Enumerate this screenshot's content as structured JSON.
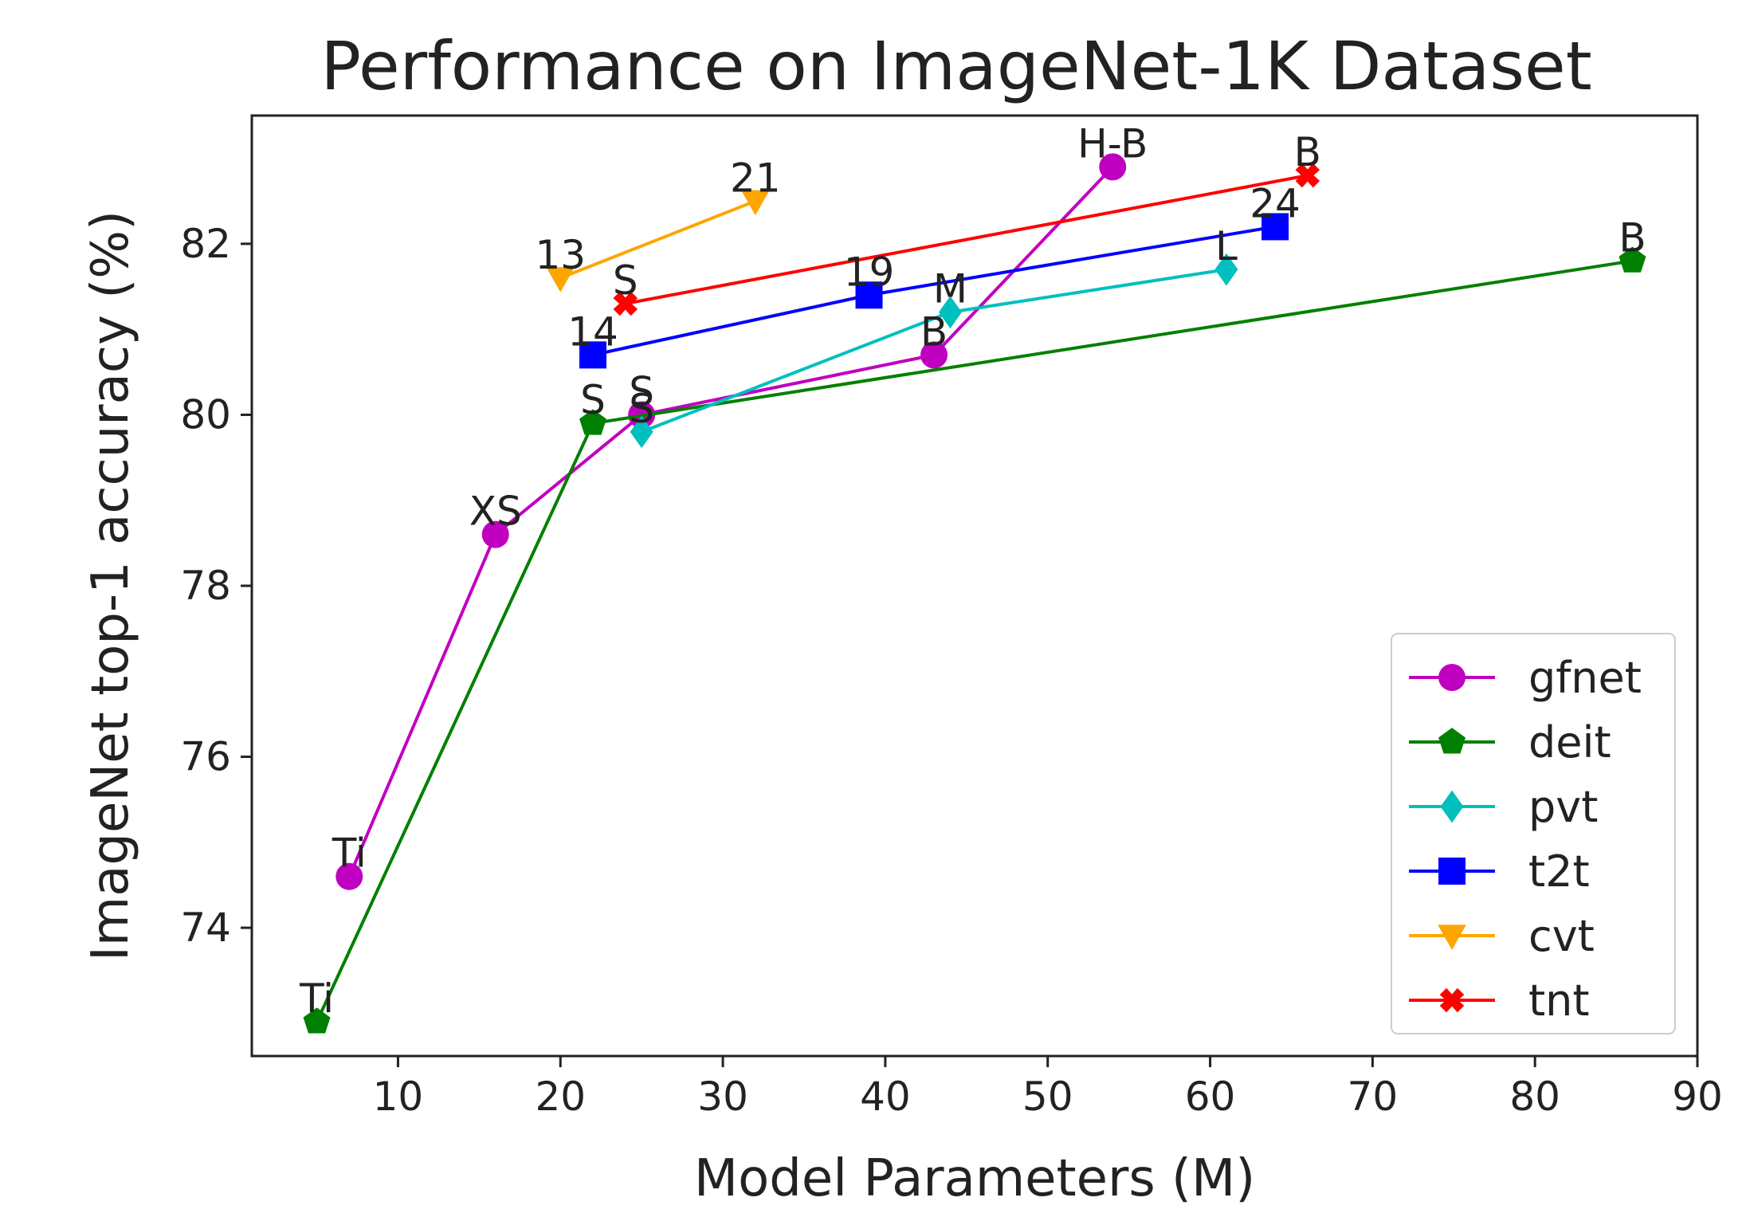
{
  "chart_data": {
    "type": "line",
    "title": "Performance on ImageNet-1K Dataset",
    "xlabel": "Model Parameters (M)",
    "ylabel": "ImageNet top-1 accuracy (%)",
    "xlim": [
      1,
      90
    ],
    "ylim": [
      72.5,
      83.5
    ],
    "xticks": [
      10,
      20,
      30,
      40,
      50,
      60,
      70,
      80,
      90
    ],
    "yticks": [
      74,
      76,
      78,
      80,
      82
    ],
    "grid": false,
    "legend_position": "lower-right",
    "series": [
      {
        "name": "gfnet",
        "color": "#c000c0",
        "marker": "circle",
        "points": [
          {
            "x": 7,
            "y": 74.6,
            "label": "Ti"
          },
          {
            "x": 16,
            "y": 78.6,
            "label": "XS"
          },
          {
            "x": 25,
            "y": 80.0,
            "label": "S"
          },
          {
            "x": 43,
            "y": 80.7,
            "label": "B"
          },
          {
            "x": 54,
            "y": 82.9,
            "label": "H-B"
          }
        ]
      },
      {
        "name": "deit",
        "color": "#008000",
        "marker": "pentagon",
        "points": [
          {
            "x": 5,
            "y": 72.9,
            "label": "Ti"
          },
          {
            "x": 22,
            "y": 79.9,
            "label": "S"
          },
          {
            "x": 86,
            "y": 81.8,
            "label": "B"
          }
        ]
      },
      {
        "name": "pvt",
        "color": "#00bfbf",
        "marker": "diamond",
        "points": [
          {
            "x": 25,
            "y": 79.8,
            "label": "S"
          },
          {
            "x": 44,
            "y": 81.2,
            "label": "M"
          },
          {
            "x": 61,
            "y": 81.7,
            "label": "L"
          }
        ]
      },
      {
        "name": "t2t",
        "color": "#0000ff",
        "marker": "square",
        "points": [
          {
            "x": 22,
            "y": 80.7,
            "label": "14"
          },
          {
            "x": 39,
            "y": 81.4,
            "label": "19"
          },
          {
            "x": 64,
            "y": 82.2,
            "label": "24"
          }
        ]
      },
      {
        "name": "cvt",
        "color": "#ffa500",
        "marker": "triangle-down",
        "points": [
          {
            "x": 20,
            "y": 81.6,
            "label": "13"
          },
          {
            "x": 32,
            "y": 82.5,
            "label": "21"
          }
        ]
      },
      {
        "name": "tnt",
        "color": "#ff0000",
        "marker": "x",
        "points": [
          {
            "x": 24,
            "y": 81.3,
            "label": "S"
          },
          {
            "x": 66,
            "y": 82.8,
            "label": "B"
          }
        ]
      }
    ]
  }
}
